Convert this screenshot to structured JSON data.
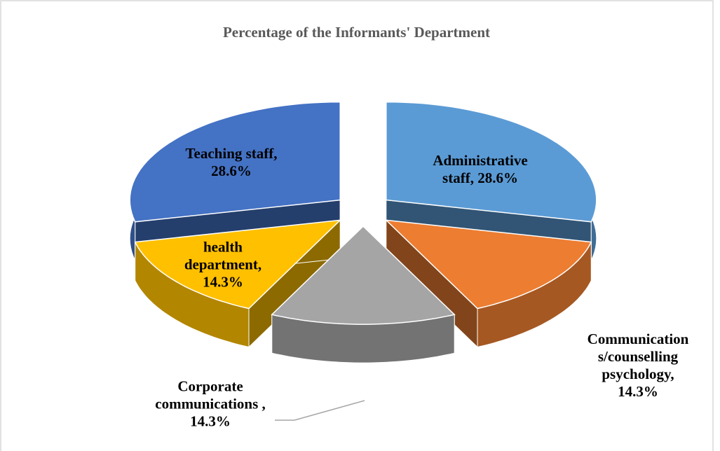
{
  "chart_data": {
    "type": "pie",
    "title": "Percentage of the Informants' Department",
    "values": [
      28.6,
      14.3,
      14.3,
      14.3,
      28.6
    ],
    "value_labels": [
      "Administrative staff, 28.6%",
      "Communications/counselling psychology, 14.3%",
      "Corporate communications , 14.3%",
      "health department, 14.3%",
      "Teaching staff, 28.6%"
    ],
    "colors": [
      "#5b9bd5",
      "#ed7d31",
      "#a5a5a5",
      "#ffc000",
      "#4472c4"
    ]
  }
}
